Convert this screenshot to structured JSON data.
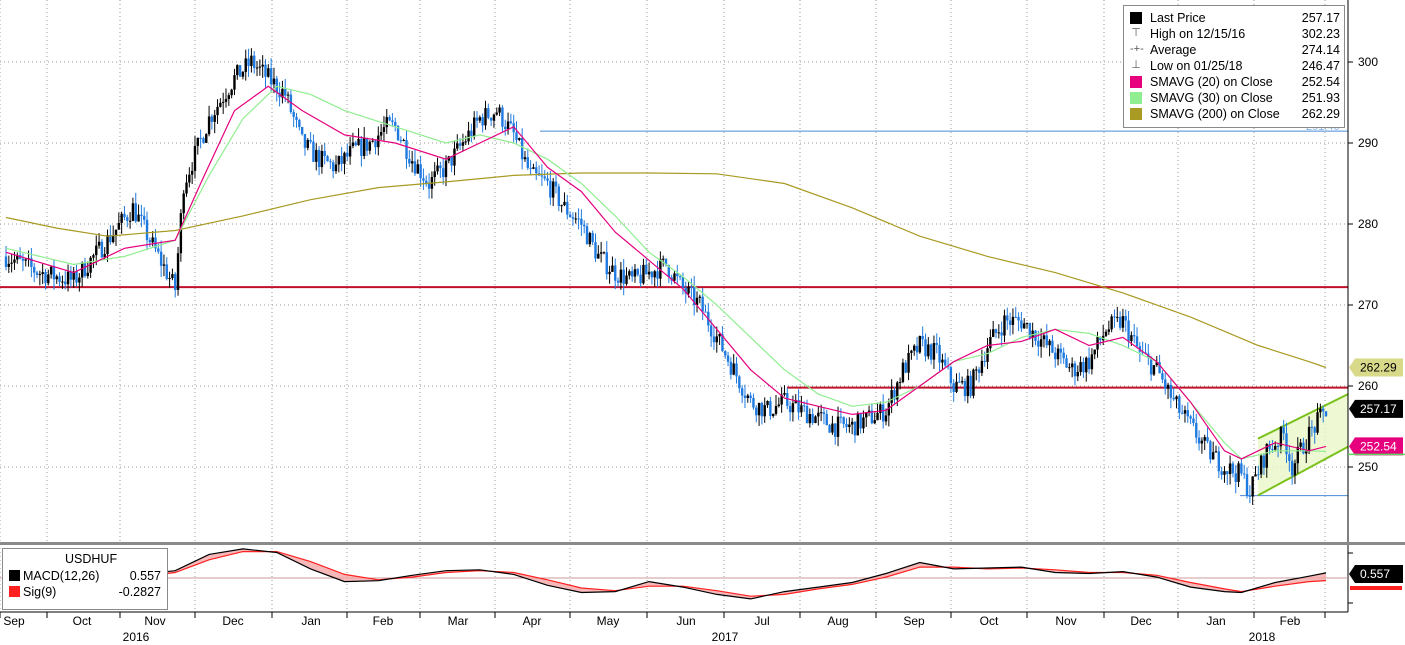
{
  "legend": {
    "rows": [
      {
        "icon": "square-icon",
        "label": "Last Price",
        "value": "257.17",
        "color": "#000000"
      },
      {
        "icon": "high-marker-icon",
        "label": "High on 12/15/16",
        "value": "302.23",
        "color": "#777777"
      },
      {
        "icon": "average-marker-icon",
        "label": "Average",
        "value": "274.14",
        "color": "#777777"
      },
      {
        "icon": "low-marker-icon",
        "label": "Low on 01/25/18",
        "value": "246.47",
        "color": "#777777"
      },
      {
        "icon": "square-icon",
        "label": "SMAVG (20) on Close",
        "value": "252.54",
        "color": "#e6007e"
      },
      {
        "icon": "square-icon",
        "label": "SMAVG (30) on Close",
        "value": "251.93",
        "color": "#90ee90"
      },
      {
        "icon": "square-icon",
        "label": "SMAVG (200) on Close",
        "value": "262.29",
        "color": "#a89a22"
      }
    ]
  },
  "macd_legend": {
    "title": "USDHUF",
    "rows": [
      {
        "label": "MACD(12,26)",
        "value": "0.557",
        "color": "#000000"
      },
      {
        "label": "Sig(9)",
        "value": "-0.2827",
        "color": "#ff0000"
      }
    ]
  },
  "price_tags": [
    {
      "value": 262.29,
      "text": "262.29",
      "bg": "#d9d98a",
      "fg": "#000000"
    },
    {
      "value": 257.17,
      "text": "257.17",
      "bg": "#000000",
      "fg": "#ffffff"
    },
    {
      "value": 252.54,
      "text": "252.54",
      "bg": "#e6007e",
      "fg": "#ffffff"
    }
  ],
  "macd_tag": {
    "text": "0.557",
    "bg": "#000000",
    "fg": "#ffffff"
  },
  "hidden_tag_text": "291.46",
  "chart_data": {
    "type": "candlestick",
    "ylim": [
      243,
      307
    ],
    "yticks": [
      250,
      260,
      270,
      280,
      290,
      300
    ],
    "ytick_labels": [
      "250",
      "260",
      "270",
      "280",
      "290",
      "300"
    ],
    "months": [
      "Sep",
      "Oct",
      "Nov",
      "Dec",
      "Jan",
      "Feb",
      "Mar",
      "Apr",
      "May",
      "Jun",
      "Jul",
      "Aug",
      "Sep",
      "Oct",
      "Nov",
      "Dec",
      "Jan",
      "Feb"
    ],
    "years": [
      "2016",
      "2017",
      "2018"
    ],
    "last_price": 257.17,
    "high": 302.23,
    "low": 246.47,
    "average": 274.14,
    "horizontal_lines": [
      {
        "value": 272.2,
        "color": "#c0102a"
      },
      {
        "value": 259.8,
        "color": "#c0102a"
      }
    ],
    "blue_level_lines": [
      {
        "value": 291.46,
        "from": "Apr 2017",
        "to": "end"
      },
      {
        "value": 246.47,
        "from": "Jan 2018",
        "to": "end"
      }
    ],
    "channel": {
      "lower": [
        246.5,
        252.5
      ],
      "upper": [
        253.5,
        259.0
      ]
    },
    "close_path": [
      [
        0,
        276
      ],
      [
        4,
        274
      ],
      [
        8,
        273
      ],
      [
        12,
        278
      ],
      [
        15,
        282
      ],
      [
        18,
        276
      ],
      [
        20,
        272
      ],
      [
        21,
        285
      ],
      [
        24,
        293
      ],
      [
        27,
        298
      ],
      [
        29,
        300
      ],
      [
        31,
        298
      ],
      [
        33,
        296
      ],
      [
        35,
        290
      ],
      [
        37,
        288
      ],
      [
        39,
        287
      ],
      [
        41,
        289
      ],
      [
        43,
        290
      ],
      [
        45,
        292
      ],
      [
        46,
        292
      ],
      [
        48,
        288
      ],
      [
        50,
        285
      ],
      [
        52,
        287
      ],
      [
        54,
        290
      ],
      [
        56,
        293
      ],
      [
        58,
        294
      ],
      [
        60,
        291
      ],
      [
        62,
        286
      ],
      [
        64,
        285
      ],
      [
        66,
        282
      ],
      [
        68,
        280
      ],
      [
        70,
        276
      ],
      [
        72,
        274
      ],
      [
        74,
        273
      ],
      [
        76,
        274
      ],
      [
        78,
        275
      ],
      [
        80,
        272
      ],
      [
        82,
        270
      ],
      [
        84,
        266
      ],
      [
        86,
        262
      ],
      [
        88,
        258
      ],
      [
        90,
        257
      ],
      [
        92,
        258
      ],
      [
        94,
        257
      ],
      [
        96,
        256
      ],
      [
        98,
        255
      ],
      [
        100,
        255
      ],
      [
        102,
        256
      ],
      [
        104,
        257
      ],
      [
        106,
        262
      ],
      [
        108,
        265
      ],
      [
        110,
        264
      ],
      [
        112,
        260
      ],
      [
        114,
        260
      ],
      [
        116,
        265
      ],
      [
        118,
        268
      ],
      [
        120,
        268
      ],
      [
        122,
        266
      ],
      [
        124,
        264
      ],
      [
        126,
        262
      ],
      [
        128,
        263
      ],
      [
        130,
        267
      ],
      [
        132,
        268
      ],
      [
        134,
        264
      ],
      [
        136,
        262
      ],
      [
        138,
        258
      ],
      [
        140,
        255
      ],
      [
        142,
        252
      ],
      [
        144,
        250
      ],
      [
        146,
        249
      ],
      [
        147,
        247
      ],
      [
        149,
        252
      ],
      [
        151,
        254
      ],
      [
        152,
        250
      ],
      [
        154,
        254
      ],
      [
        156,
        257
      ]
    ],
    "sma200_path": [
      [
        0,
        280.8
      ],
      [
        6,
        279.5
      ],
      [
        12,
        278.5
      ],
      [
        20,
        279.2
      ],
      [
        28,
        281
      ],
      [
        36,
        283
      ],
      [
        44,
        284.5
      ],
      [
        52,
        285.2
      ],
      [
        60,
        286
      ],
      [
        68,
        286.3
      ],
      [
        76,
        286.3
      ],
      [
        84,
        286.2
      ],
      [
        92,
        285
      ],
      [
        100,
        282
      ],
      [
        108,
        278.5
      ],
      [
        116,
        276
      ],
      [
        124,
        274
      ],
      [
        132,
        271.5
      ],
      [
        140,
        268.5
      ],
      [
        148,
        265
      ],
      [
        154,
        263
      ],
      [
        156,
        262.29
      ]
    ],
    "sma30_path": [
      [
        0,
        277
      ],
      [
        8,
        275
      ],
      [
        14,
        276
      ],
      [
        20,
        278
      ],
      [
        24,
        286
      ],
      [
        28,
        293
      ],
      [
        32,
        297
      ],
      [
        36,
        296
      ],
      [
        40,
        294
      ],
      [
        46,
        292
      ],
      [
        52,
        290
      ],
      [
        56,
        291
      ],
      [
        60,
        290
      ],
      [
        64,
        288
      ],
      [
        68,
        285
      ],
      [
        72,
        281
      ],
      [
        76,
        276.5
      ],
      [
        80,
        273.5
      ],
      [
        84,
        270
      ],
      [
        88,
        266
      ],
      [
        92,
        262
      ],
      [
        96,
        259
      ],
      [
        100,
        257.5
      ],
      [
        104,
        258
      ],
      [
        108,
        260
      ],
      [
        112,
        263
      ],
      [
        116,
        264
      ],
      [
        120,
        266
      ],
      [
        124,
        267
      ],
      [
        128,
        266.5
      ],
      [
        132,
        265
      ],
      [
        136,
        263
      ],
      [
        140,
        258
      ],
      [
        144,
        253
      ],
      [
        146,
        251
      ],
      [
        150,
        252
      ],
      [
        154,
        252
      ],
      [
        156,
        251.93
      ]
    ],
    "sma20_path": [
      [
        0,
        276.5
      ],
      [
        8,
        274
      ],
      [
        14,
        277
      ],
      [
        20,
        278
      ],
      [
        23,
        285
      ],
      [
        27,
        294
      ],
      [
        31,
        297
      ],
      [
        35,
        294
      ],
      [
        40,
        291
      ],
      [
        46,
        290
      ],
      [
        52,
        288
      ],
      [
        56,
        290
      ],
      [
        60,
        292
      ],
      [
        64,
        287
      ],
      [
        68,
        284
      ],
      [
        72,
        279
      ],
      [
        76,
        275.5
      ],
      [
        80,
        272
      ],
      [
        84,
        267
      ],
      [
        88,
        262
      ],
      [
        92,
        258.5
      ],
      [
        96,
        257.5
      ],
      [
        100,
        256.5
      ],
      [
        104,
        257
      ],
      [
        108,
        260
      ],
      [
        112,
        263
      ],
      [
        116,
        265
      ],
      [
        120,
        265.5
      ],
      [
        124,
        267
      ],
      [
        128,
        265
      ],
      [
        132,
        266
      ],
      [
        136,
        263
      ],
      [
        140,
        258
      ],
      [
        144,
        252
      ],
      [
        146,
        251
      ],
      [
        150,
        253
      ],
      [
        154,
        252
      ],
      [
        156,
        252.54
      ]
    ],
    "macd_path": [
      [
        0,
        -0.2
      ],
      [
        8,
        -0.8
      ],
      [
        14,
        0.2
      ],
      [
        20,
        0.8
      ],
      [
        24,
        2.6
      ],
      [
        28,
        3.2
      ],
      [
        32,
        2.8
      ],
      [
        36,
        1.0
      ],
      [
        40,
        -0.4
      ],
      [
        44,
        -0.3
      ],
      [
        48,
        0.3
      ],
      [
        52,
        0.8
      ],
      [
        56,
        0.9
      ],
      [
        60,
        0.4
      ],
      [
        64,
        -0.8
      ],
      [
        68,
        -1.6
      ],
      [
        72,
        -1.5
      ],
      [
        76,
        -0.4
      ],
      [
        80,
        -1.0
      ],
      [
        84,
        -1.8
      ],
      [
        88,
        -2.3
      ],
      [
        92,
        -1.5
      ],
      [
        96,
        -1.0
      ],
      [
        100,
        -0.5
      ],
      [
        104,
        0.5
      ],
      [
        108,
        1.7
      ],
      [
        112,
        1.0
      ],
      [
        116,
        1.1
      ],
      [
        120,
        1.2
      ],
      [
        124,
        0.6
      ],
      [
        128,
        0.5
      ],
      [
        132,
        0.7
      ],
      [
        136,
        0.1
      ],
      [
        140,
        -1.0
      ],
      [
        144,
        -1.5
      ],
      [
        146,
        -1.6
      ],
      [
        150,
        -0.5
      ],
      [
        154,
        0.2
      ],
      [
        156,
        0.557
      ]
    ],
    "signal_path": [
      [
        0,
        -0.1
      ],
      [
        8,
        -0.5
      ],
      [
        14,
        -0.1
      ],
      [
        20,
        0.6
      ],
      [
        24,
        2.0
      ],
      [
        28,
        2.9
      ],
      [
        32,
        2.9
      ],
      [
        36,
        1.8
      ],
      [
        40,
        0.4
      ],
      [
        44,
        -0.2
      ],
      [
        48,
        0.1
      ],
      [
        52,
        0.6
      ],
      [
        56,
        0.8
      ],
      [
        60,
        0.6
      ],
      [
        64,
        -0.2
      ],
      [
        68,
        -1.1
      ],
      [
        72,
        -1.4
      ],
      [
        76,
        -0.9
      ],
      [
        80,
        -0.9
      ],
      [
        84,
        -1.4
      ],
      [
        88,
        -2.0
      ],
      [
        92,
        -1.8
      ],
      [
        96,
        -1.2
      ],
      [
        100,
        -0.7
      ],
      [
        104,
        0.1
      ],
      [
        108,
        1.2
      ],
      [
        112,
        1.2
      ],
      [
        116,
        1.0
      ],
      [
        120,
        1.1
      ],
      [
        124,
        0.9
      ],
      [
        128,
        0.6
      ],
      [
        132,
        0.6
      ],
      [
        136,
        0.3
      ],
      [
        140,
        -0.5
      ],
      [
        144,
        -1.2
      ],
      [
        146,
        -1.5
      ],
      [
        150,
        -0.9
      ],
      [
        154,
        -0.4
      ],
      [
        156,
        -0.2827
      ]
    ]
  }
}
